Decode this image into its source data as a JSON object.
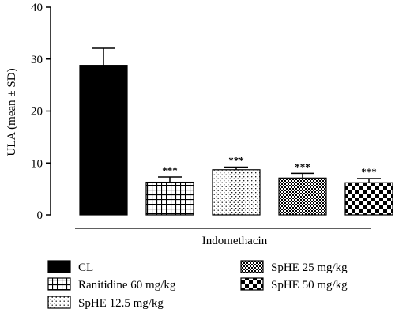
{
  "chart_data": {
    "type": "bar",
    "categories": [
      "CL",
      "Ranitidine 60 mg/kg",
      "SpHE 12.5 mg/kg",
      "SpHE 25 mg/kg",
      "SpHE 50 mg/kg"
    ],
    "values": [
      28.8,
      6.3,
      8.7,
      7.1,
      6.2
    ],
    "errors": [
      3.3,
      1.0,
      0.5,
      0.9,
      0.8
    ],
    "significance": [
      "",
      "***",
      "***",
      "***",
      "***"
    ],
    "patterns": [
      "solid-black",
      "grid",
      "dots",
      "small-checker",
      "large-checker"
    ],
    "title": "",
    "xlabel": "Indomethacin",
    "ylabel": "ULA (mean ± SD)",
    "ylim": [
      0,
      40
    ],
    "yticks": [
      "0",
      "10",
      "20",
      "30",
      "40"
    ],
    "grid": false,
    "legend_position": "bottom"
  }
}
